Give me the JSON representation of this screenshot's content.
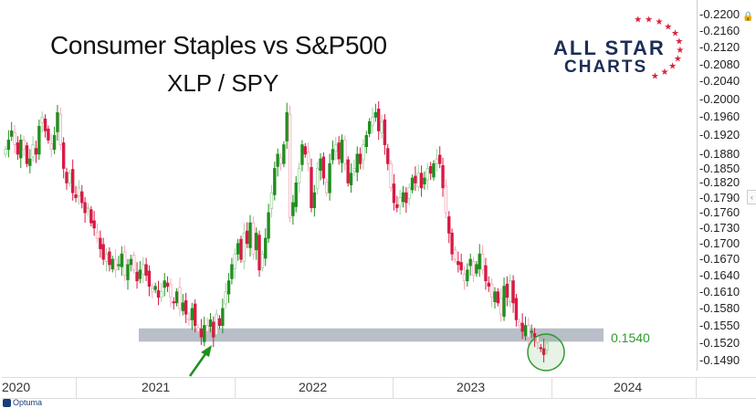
{
  "header": {
    "title": "Consumer Staples vs S&P500",
    "subtitle": "XLP / SPY"
  },
  "logo": {
    "line1": "ALL STAR",
    "line2": "CHARTS",
    "star_color": "#d7263d",
    "text_color": "#1d2d55"
  },
  "footer": {
    "brand": "Optuma"
  },
  "icons": {
    "lock": "lock-icon",
    "collapse": "chevron-left-icon"
  },
  "chart_data": {
    "type": "candlestick",
    "title": "Consumer Staples vs S&P500",
    "subtitle": "XLP / SPY",
    "frequency": "weekly",
    "y_scale": "log",
    "ylim": [
      0.1475,
      0.2205
    ],
    "y_ticks": [
      "0.2200",
      "0.2160",
      "0.2120",
      "0.2080",
      "0.2040",
      "0.2000",
      "0.1960",
      "0.1920",
      "0.1880",
      "0.1850",
      "0.1820",
      "0.1790",
      "0.1760",
      "0.1730",
      "0.1700",
      "0.1670",
      "0.1640",
      "0.1610",
      "0.1580",
      "0.1550",
      "0.1520",
      "0.1490"
    ],
    "x_ticks": [
      "2020",
      "2021",
      "2022",
      "2023",
      "2024"
    ],
    "grid": false,
    "up_color": "#1f8f1f",
    "down_color": "#d81b45",
    "close": [
      0.189,
      0.191,
      0.193,
      0.19,
      0.188,
      0.191,
      0.189,
      0.186,
      0.187,
      0.19,
      0.188,
      0.194,
      0.196,
      0.193,
      0.191,
      0.189,
      0.192,
      0.197,
      0.19,
      0.185,
      0.182,
      0.184,
      0.18,
      0.179,
      0.181,
      0.178,
      0.176,
      0.177,
      0.174,
      0.173,
      0.171,
      0.169,
      0.167,
      0.168,
      0.166,
      0.167,
      0.165,
      0.166,
      0.168,
      0.164,
      0.166,
      0.167,
      0.165,
      0.163,
      0.165,
      0.166,
      0.164,
      0.162,
      0.161,
      0.162,
      0.16,
      0.161,
      0.163,
      0.162,
      0.16,
      0.159,
      0.161,
      0.158,
      0.159,
      0.157,
      0.156,
      0.158,
      0.155,
      0.154,
      0.153,
      0.155,
      0.154,
      0.156,
      0.153,
      0.157,
      0.155,
      0.158,
      0.161,
      0.163,
      0.166,
      0.168,
      0.17,
      0.167,
      0.172,
      0.17,
      0.174,
      0.168,
      0.172,
      0.165,
      0.168,
      0.171,
      0.176,
      0.18,
      0.185,
      0.188,
      0.186,
      0.19,
      0.197,
      0.175,
      0.178,
      0.182,
      0.185,
      0.19,
      0.188,
      0.186,
      0.177,
      0.18,
      0.185,
      0.187,
      0.183,
      0.18,
      0.186,
      0.189,
      0.19,
      0.187,
      0.191,
      0.186,
      0.182,
      0.184,
      0.185,
      0.188,
      0.186,
      0.19,
      0.192,
      0.195,
      0.196,
      0.197,
      0.193,
      0.195,
      0.19,
      0.186,
      0.181,
      0.178,
      0.177,
      0.179,
      0.18,
      0.178,
      0.181,
      0.183,
      0.182,
      0.184,
      0.181,
      0.183,
      0.185,
      0.184,
      0.186,
      0.187,
      0.186,
      0.181,
      0.176,
      0.172,
      0.168,
      0.167,
      0.166,
      0.165,
      0.163,
      0.165,
      0.167,
      0.164,
      0.166,
      0.168,
      0.165,
      0.163,
      0.162,
      0.16,
      0.161,
      0.159,
      0.157,
      0.162,
      0.16,
      0.163,
      0.159,
      0.156,
      0.155,
      0.154,
      0.155,
      0.153,
      0.154,
      0.153,
      0.152,
      0.151,
      0.15,
      0.152
    ],
    "annotations": {
      "support_level": {
        "label": "0.1540",
        "low": 0.1522,
        "high": 0.1545,
        "color": "#b8bfc8"
      },
      "support_label_color": "#2e9a2e",
      "arrow_color": "#1f8f1f",
      "highlight_circle_color": "#2e9a2e"
    }
  }
}
